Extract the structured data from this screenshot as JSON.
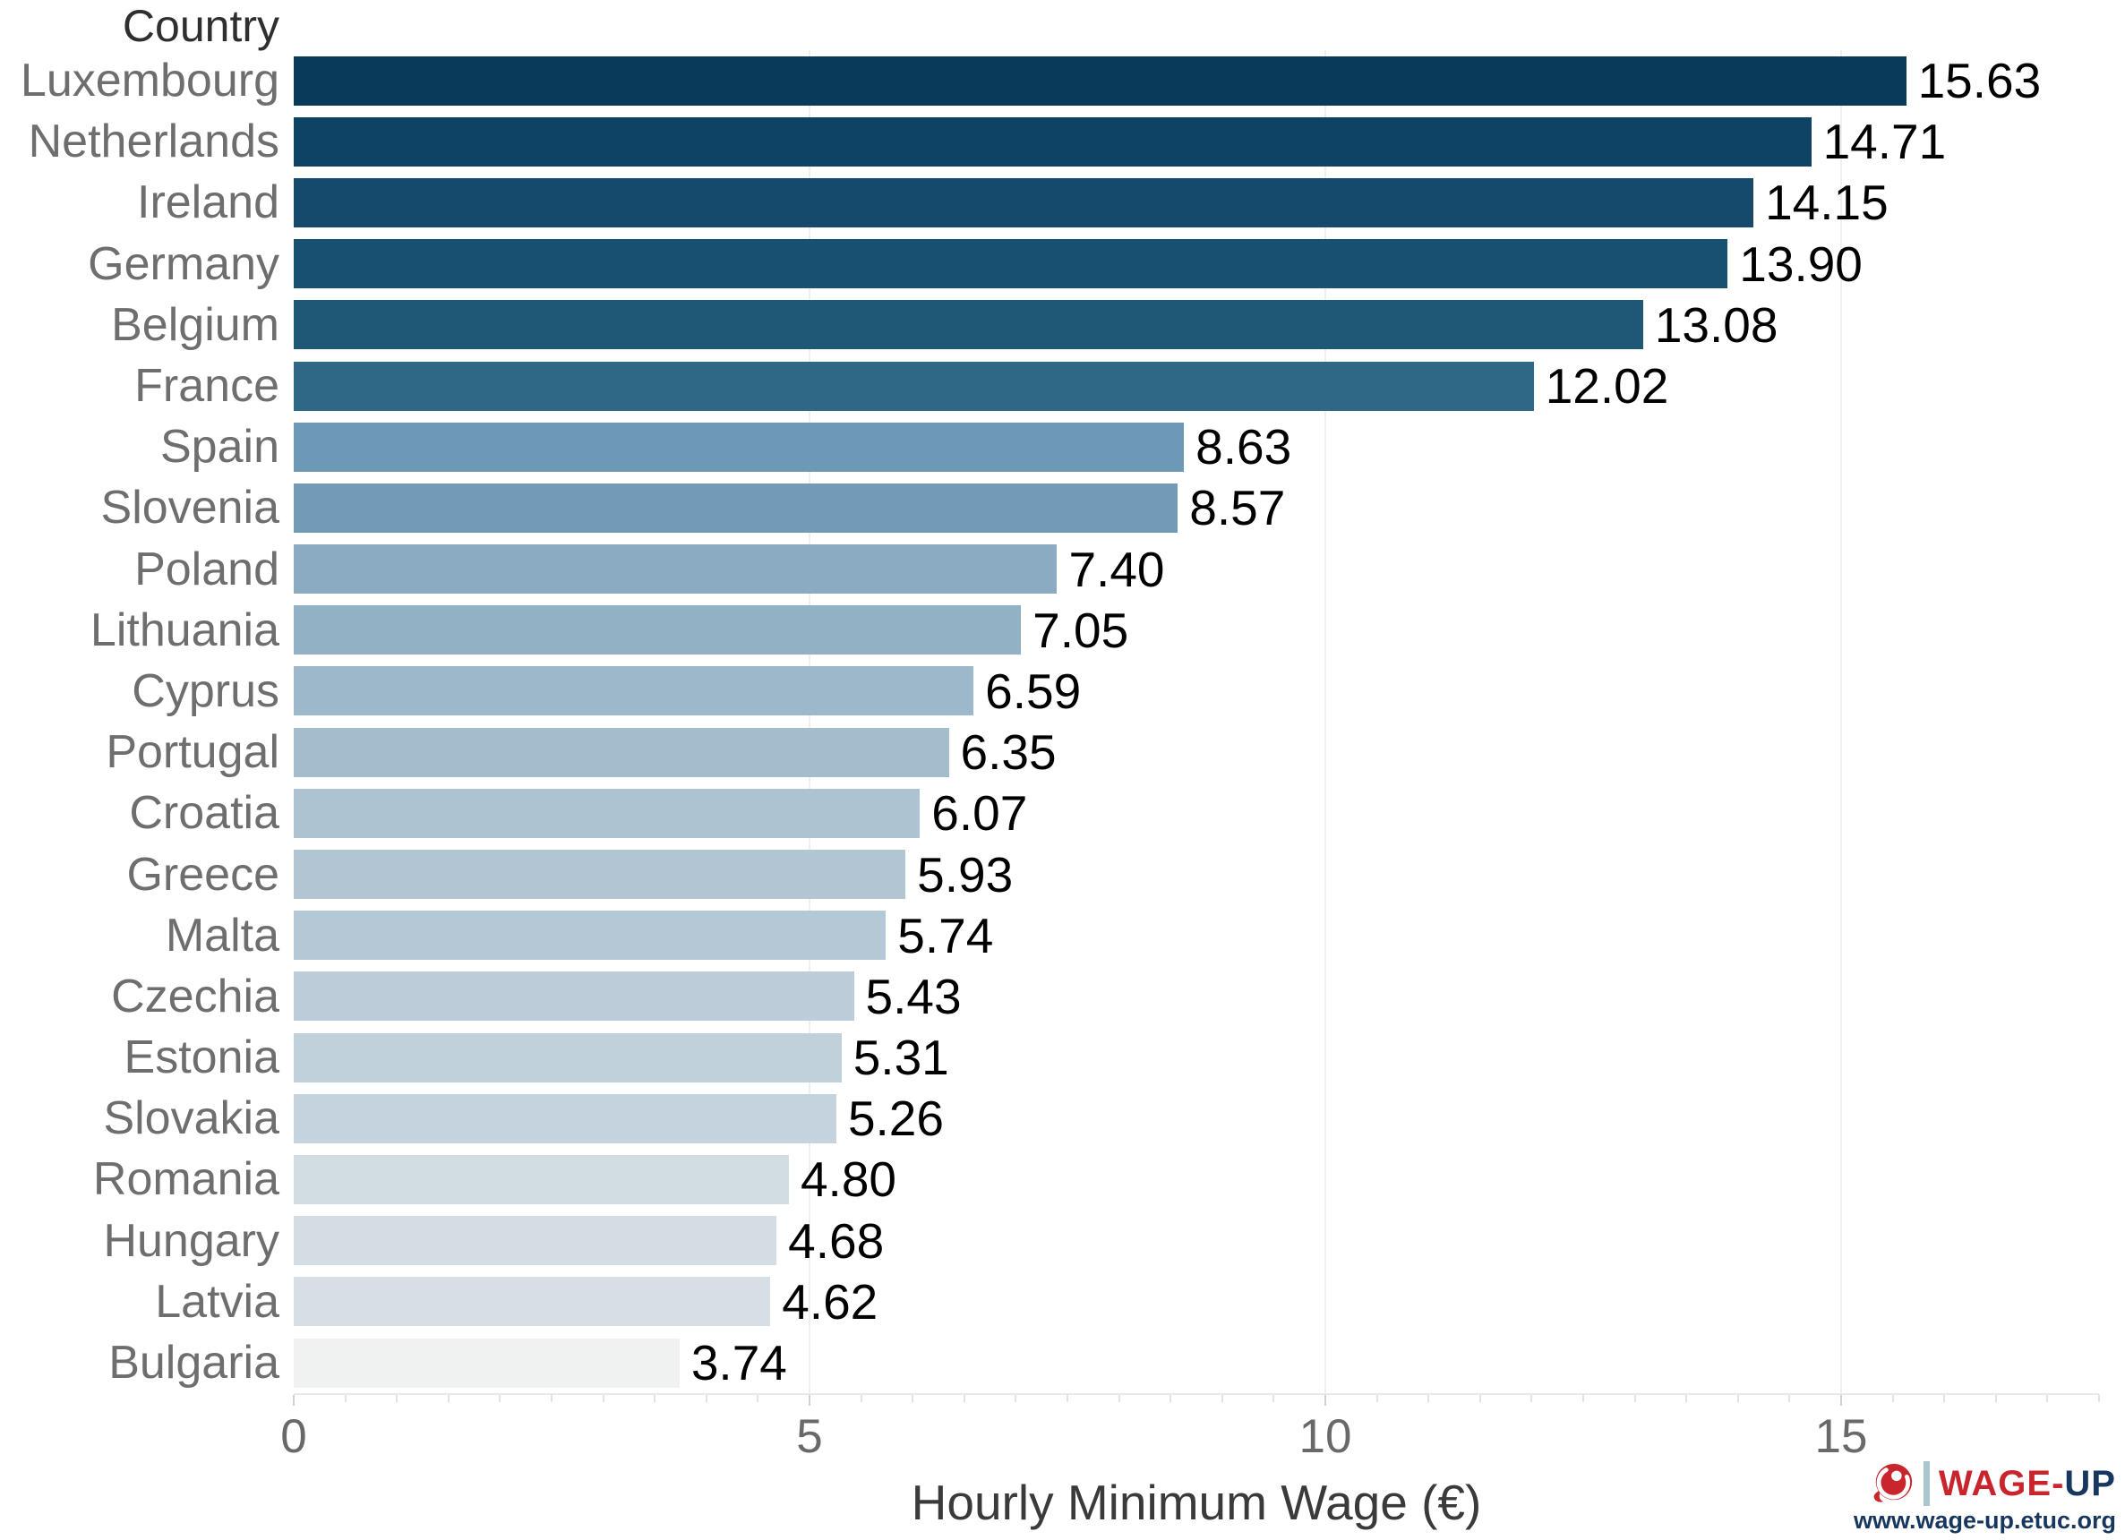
{
  "chart_data": {
    "type": "bar",
    "orientation": "horizontal",
    "y_column_title": "Country",
    "xlabel": "Hourly Minimum Wage (€)",
    "categories": [
      "Luxembourg",
      "Netherlands",
      "Ireland",
      "Germany",
      "Belgium",
      "France",
      "Spain",
      "Slovenia",
      "Poland",
      "Lithuania",
      "Cyprus",
      "Portugal",
      "Croatia",
      "Greece",
      "Malta",
      "Czechia",
      "Estonia",
      "Slovakia",
      "Romania",
      "Hungary",
      "Latvia",
      "Bulgaria"
    ],
    "values": [
      15.63,
      14.71,
      14.15,
      13.9,
      13.08,
      12.02,
      8.63,
      8.57,
      7.4,
      7.05,
      6.59,
      6.35,
      6.07,
      5.93,
      5.74,
      5.43,
      5.31,
      5.26,
      4.8,
      4.68,
      4.62,
      3.74
    ],
    "value_labels": [
      "15.63",
      "14.71",
      "14.15",
      "13.90",
      "13.08",
      "12.02",
      "8.63",
      "8.57",
      "7.40",
      "7.05",
      "6.59",
      "6.35",
      "6.07",
      "5.93",
      "5.74",
      "5.43",
      "5.31",
      "5.26",
      "4.80",
      "4.68",
      "4.62",
      "3.74"
    ],
    "bar_colors": [
      "#0a3a5a",
      "#0f4366",
      "#154a6c",
      "#175070",
      "#1e5877",
      "#2f6787",
      "#6e99b6",
      "#719bb7",
      "#8aabc1",
      "#92b1c5",
      "#9cb8ca",
      "#a3bdcd",
      "#aec3d1",
      "#b1c5d3",
      "#b5c8d5",
      "#bccdd9",
      "#c1d1db",
      "#c4d3dd",
      "#d2dce3",
      "#d4dde4",
      "#d6dfe5",
      "#f0f1f1"
    ],
    "x_ticks": [
      0,
      5,
      10,
      15
    ],
    "x_tick_labels": [
      "0",
      "5",
      "10",
      "15"
    ],
    "xlim": [
      0,
      17.5
    ],
    "minor_tick_step": 0.5,
    "gridlines_at": [
      5,
      10,
      15
    ],
    "grid": "vertical-major-only",
    "legend_position": "none",
    "value_label_position": "right-of-bar"
  },
  "branding": {
    "wordmark_primary": "WAGE-",
    "wordmark_secondary": "UP",
    "url": "www.wage-up.etuc.org",
    "colors": {
      "red": "#c9252c",
      "navy": "#17375e",
      "separator": "#a9c6ce"
    }
  }
}
